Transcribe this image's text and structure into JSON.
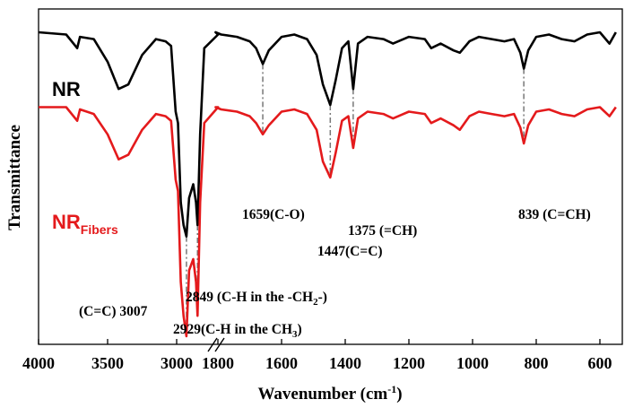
{
  "chart_data": {
    "type": "line",
    "title": "",
    "xlabel": "Wavenumber (cm",
    "xlabel_sup": "-1",
    "xlabel_tail": ")",
    "ylabel": "Transmittance",
    "x_ticks": [
      4000,
      3500,
      3000,
      1800,
      1600,
      1400,
      1200,
      1000,
      800,
      600
    ],
    "x_axis_break": "between 3000 and 1800 (// marks)",
    "xlim": [
      4000,
      550
    ],
    "y_ticks_shown": false,
    "grid": false,
    "legend": "series labels placed left of each trace",
    "series": [
      {
        "name": "NR",
        "label_main": "NR",
        "label_sub": "",
        "color": "#000000",
        "points": [
          [
            4000,
            0.95
          ],
          [
            3800,
            0.94
          ],
          [
            3720,
            0.88
          ],
          [
            3700,
            0.93
          ],
          [
            3600,
            0.92
          ],
          [
            3500,
            0.82
          ],
          [
            3420,
            0.7
          ],
          [
            3350,
            0.72
          ],
          [
            3250,
            0.85
          ],
          [
            3150,
            0.92
          ],
          [
            3080,
            0.91
          ],
          [
            3040,
            0.89
          ],
          [
            3007,
            0.6
          ],
          [
            2990,
            0.55
          ],
          [
            2970,
            0.2
          ],
          [
            2950,
            0.1
          ],
          [
            2929,
            0.05
          ],
          [
            2910,
            0.22
          ],
          [
            2880,
            0.28
          ],
          [
            2860,
            0.2
          ],
          [
            2849,
            0.1
          ],
          [
            2830,
            0.5
          ],
          [
            2800,
            0.88
          ],
          [
            2700,
            0.94
          ],
          [
            1850,
            0.95
          ],
          [
            1790,
            0.94
          ],
          [
            1740,
            0.93
          ],
          [
            1700,
            0.91
          ],
          [
            1680,
            0.88
          ],
          [
            1659,
            0.81
          ],
          [
            1640,
            0.87
          ],
          [
            1600,
            0.93
          ],
          [
            1560,
            0.94
          ],
          [
            1520,
            0.92
          ],
          [
            1490,
            0.85
          ],
          [
            1470,
            0.72
          ],
          [
            1447,
            0.63
          ],
          [
            1430,
            0.74
          ],
          [
            1410,
            0.88
          ],
          [
            1390,
            0.91
          ],
          [
            1375,
            0.7
          ],
          [
            1360,
            0.9
          ],
          [
            1330,
            0.93
          ],
          [
            1280,
            0.92
          ],
          [
            1250,
            0.9
          ],
          [
            1200,
            0.93
          ],
          [
            1150,
            0.92
          ],
          [
            1130,
            0.88
          ],
          [
            1100,
            0.9
          ],
          [
            1060,
            0.87
          ],
          [
            1040,
            0.86
          ],
          [
            1010,
            0.91
          ],
          [
            980,
            0.93
          ],
          [
            940,
            0.92
          ],
          [
            900,
            0.91
          ],
          [
            870,
            0.92
          ],
          [
            850,
            0.86
          ],
          [
            839,
            0.79
          ],
          [
            825,
            0.87
          ],
          [
            800,
            0.93
          ],
          [
            760,
            0.94
          ],
          [
            720,
            0.92
          ],
          [
            680,
            0.91
          ],
          [
            640,
            0.94
          ],
          [
            600,
            0.95
          ],
          [
            570,
            0.9
          ],
          [
            550,
            0.95
          ]
        ]
      },
      {
        "name": "NRFibers",
        "label_main": "NR",
        "label_sub": "Fibers",
        "color": "#e41a1c",
        "points": [
          [
            4000,
            0.62
          ],
          [
            3800,
            0.62
          ],
          [
            3720,
            0.56
          ],
          [
            3700,
            0.61
          ],
          [
            3600,
            0.59
          ],
          [
            3500,
            0.5
          ],
          [
            3420,
            0.39
          ],
          [
            3350,
            0.41
          ],
          [
            3250,
            0.52
          ],
          [
            3150,
            0.59
          ],
          [
            3080,
            0.58
          ],
          [
            3040,
            0.56
          ],
          [
            3007,
            0.3
          ],
          [
            2990,
            0.25
          ],
          [
            2970,
            -0.15
          ],
          [
            2950,
            -0.3
          ],
          [
            2929,
            -0.39
          ],
          [
            2910,
            -0.1
          ],
          [
            2880,
            -0.05
          ],
          [
            2860,
            -0.15
          ],
          [
            2849,
            -0.3
          ],
          [
            2830,
            0.2
          ],
          [
            2800,
            0.55
          ],
          [
            2700,
            0.62
          ],
          [
            1850,
            0.62
          ],
          [
            1790,
            0.61
          ],
          [
            1740,
            0.6
          ],
          [
            1700,
            0.58
          ],
          [
            1680,
            0.55
          ],
          [
            1659,
            0.5
          ],
          [
            1640,
            0.54
          ],
          [
            1600,
            0.6
          ],
          [
            1560,
            0.61
          ],
          [
            1520,
            0.59
          ],
          [
            1490,
            0.52
          ],
          [
            1470,
            0.38
          ],
          [
            1447,
            0.31
          ],
          [
            1430,
            0.42
          ],
          [
            1410,
            0.56
          ],
          [
            1390,
            0.58
          ],
          [
            1375,
            0.44
          ],
          [
            1360,
            0.57
          ],
          [
            1330,
            0.6
          ],
          [
            1280,
            0.59
          ],
          [
            1250,
            0.57
          ],
          [
            1200,
            0.6
          ],
          [
            1150,
            0.59
          ],
          [
            1130,
            0.55
          ],
          [
            1100,
            0.57
          ],
          [
            1060,
            0.54
          ],
          [
            1040,
            0.52
          ],
          [
            1010,
            0.58
          ],
          [
            980,
            0.6
          ],
          [
            940,
            0.59
          ],
          [
            900,
            0.58
          ],
          [
            870,
            0.59
          ],
          [
            850,
            0.53
          ],
          [
            839,
            0.46
          ],
          [
            825,
            0.54
          ],
          [
            800,
            0.6
          ],
          [
            760,
            0.61
          ],
          [
            720,
            0.59
          ],
          [
            680,
            0.58
          ],
          [
            640,
            0.61
          ],
          [
            600,
            0.62
          ],
          [
            570,
            0.58
          ],
          [
            550,
            0.62
          ]
        ]
      }
    ],
    "guide_lines_at": [
      2929,
      2849,
      1659,
      1447,
      1375,
      839
    ],
    "annotations": [
      {
        "id": "a1659",
        "text": "1659(C-O)",
        "anchor": "start"
      },
      {
        "id": "a1375",
        "text": "1375 (=CH)",
        "anchor": "start"
      },
      {
        "id": "a1447",
        "text": "1447(C=C)",
        "anchor": "start"
      },
      {
        "id": "a839",
        "text": "839 (C=CH)",
        "anchor": "start"
      },
      {
        "id": "a2849",
        "text": "2849 (C-H in the -CH",
        "sub": "2",
        "tail": "-)",
        "anchor": "start"
      },
      {
        "id": "a3007",
        "text": "(C=C) 3007",
        "anchor": "start"
      },
      {
        "id": "a2929",
        "text": "2929(C-H in the CH",
        "sub": "3",
        "tail": ")",
        "anchor": "start"
      }
    ]
  }
}
